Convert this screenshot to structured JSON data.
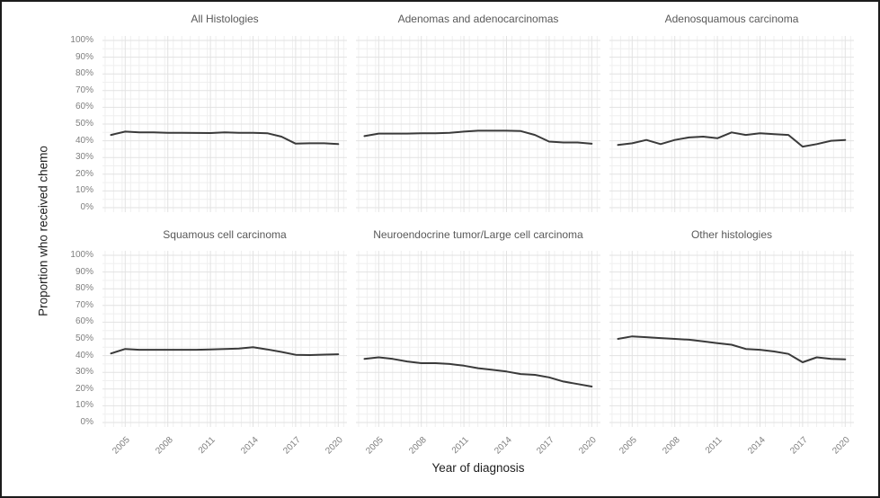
{
  "figure": {
    "x_axis_title": "Year of diagnosis",
    "y_axis_title": "Proportion who received chemo"
  },
  "chart_data": {
    "type": "line",
    "title": "",
    "xlabel": "Year of diagnosis",
    "ylabel": "Proportion who received chemo",
    "x": [
      2004,
      2005,
      2006,
      2007,
      2008,
      2009,
      2010,
      2011,
      2012,
      2013,
      2014,
      2015,
      2016,
      2017,
      2018,
      2019,
      2020
    ],
    "x_ticks": [
      2005,
      2008,
      2011,
      2014,
      2017,
      2020
    ],
    "y_ticks": [
      0,
      10,
      20,
      30,
      40,
      50,
      60,
      70,
      80,
      90,
      100
    ],
    "y_tick_suffix": "%",
    "y_minor_step": 5,
    "ylim": [
      0,
      100
    ],
    "grid": "major-and-minor",
    "legend_position": "none",
    "layout": "2 rows x 3 columns facets",
    "facets": [
      {
        "title": "All Histologies",
        "values": [
          43.5,
          45.5,
          45,
          45,
          44.8,
          44.8,
          44.7,
          44.6,
          45,
          44.8,
          44.8,
          44.5,
          42.5,
          38.3,
          38.5,
          38.5,
          38
        ]
      },
      {
        "title": "Adenomas and adenocarcinomas",
        "values": [
          42.8,
          44.3,
          44.3,
          44.3,
          44.5,
          44.5,
          44.8,
          45.5,
          46,
          46,
          46,
          45.8,
          43.5,
          39.5,
          39,
          39,
          38.2
        ]
      },
      {
        "title": "Adenosquamous carcinoma",
        "values": [
          37.5,
          38.5,
          40.5,
          38,
          40.5,
          42,
          42.5,
          41.5,
          45,
          43.5,
          44.5,
          44,
          43.5,
          36.5,
          38,
          40,
          40.5
        ]
      },
      {
        "title": "Squamous cell carcinoma",
        "values": [
          41.3,
          44,
          43.5,
          43.5,
          43.5,
          43.5,
          43.5,
          43.7,
          44,
          44.2,
          45,
          43.7,
          42.2,
          40.5,
          40.3,
          40.6,
          40.8
        ]
      },
      {
        "title": "Neuroendocrine tumor/Large cell carcinoma",
        "values": [
          38,
          39,
          38,
          36.5,
          35.5,
          35.5,
          35,
          34,
          32.5,
          31.5,
          30.5,
          29,
          28.5,
          27,
          24.5,
          23,
          21.5
        ]
      },
      {
        "title": "Other histologies",
        "values": [
          50,
          51.5,
          51,
          50.5,
          50,
          49.5,
          48.5,
          47.5,
          46.5,
          44,
          43.5,
          42.5,
          41,
          36,
          39,
          38,
          37.8
        ]
      }
    ],
    "colors": {
      "line": "#3a3a3a",
      "grid_minor": "#efefef",
      "grid_major": "#e2e2e2",
      "tick_label": "#7f7f7f",
      "panel_title": "#595959",
      "axis_title": "#1f1f1f",
      "border": "#1c1c1c",
      "background": "#ffffff"
    }
  }
}
